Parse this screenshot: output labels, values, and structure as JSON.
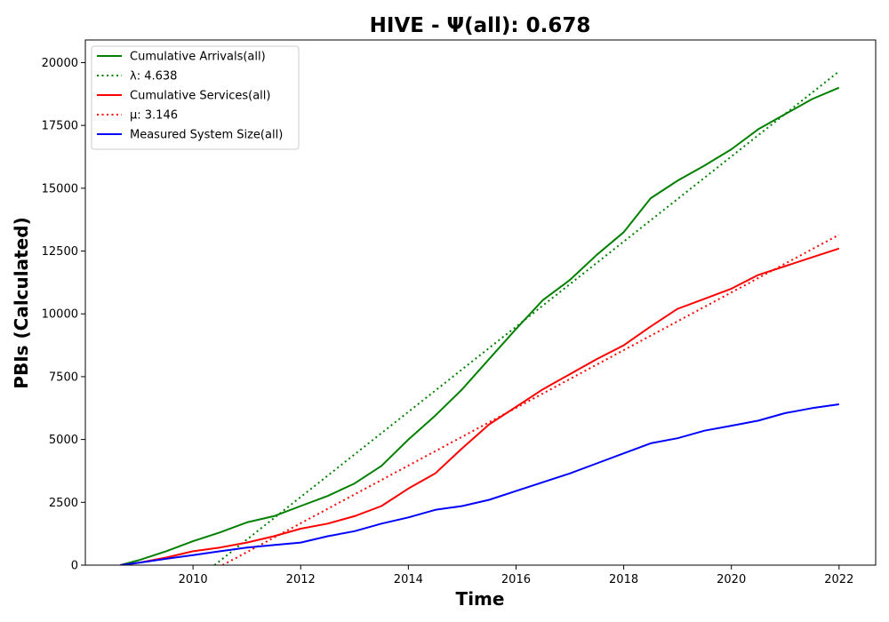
{
  "chart_data": {
    "type": "line",
    "title": "HIVE -  Ψ(all): 0.678",
    "xlabel": "Time",
    "ylabel": "PBIs (Calculated)",
    "xlim": [
      2008.0,
      2022.68
    ],
    "ylim": [
      0,
      20900
    ],
    "x_ticks": [
      2010,
      2012,
      2014,
      2016,
      2018,
      2020,
      2022
    ],
    "x_tick_labels": [
      "2010",
      "2012",
      "2014",
      "2016",
      "2018",
      "2020",
      "2022"
    ],
    "y_ticks": [
      0,
      2500,
      5000,
      7500,
      10000,
      12500,
      15000,
      17500,
      20000
    ],
    "y_tick_labels": [
      "0",
      "2500",
      "5000",
      "7500",
      "10000",
      "12500",
      "15000",
      "17500",
      "20000"
    ],
    "grid": false,
    "legend_position": "top-left",
    "series": [
      {
        "name": "Cumulative Arrivals(all)",
        "color": "#008000",
        "style": "solid",
        "x": [
          2008.65,
          2009.0,
          2009.5,
          2010.0,
          2010.5,
          2011.0,
          2011.5,
          2012.0,
          2012.5,
          2013.0,
          2013.5,
          2014.0,
          2014.5,
          2015.0,
          2015.5,
          2016.0,
          2016.5,
          2017.0,
          2017.5,
          2018.0,
          2018.5,
          2019.0,
          2019.5,
          2020.0,
          2020.5,
          2021.0,
          2021.5,
          2022.0
        ],
        "y": [
          0,
          200,
          550,
          950,
          1300,
          1700,
          1950,
          2350,
          2750,
          3250,
          3950,
          5000,
          5950,
          7000,
          8200,
          9400,
          10550,
          11350,
          12350,
          13250,
          14600,
          15300,
          15900,
          16550,
          17350,
          17950,
          18550,
          19000
        ]
      },
      {
        "name": "λ: 4.638",
        "color": "#008000",
        "style": "dotted",
        "x": [
          2010.4,
          2022.0
        ],
        "y": [
          0,
          19650
        ]
      },
      {
        "name": "Cumulative Services(all)",
        "color": "#ff0000",
        "style": "solid",
        "x": [
          2008.65,
          2009.0,
          2009.5,
          2010.0,
          2010.5,
          2011.0,
          2011.5,
          2012.0,
          2012.5,
          2013.0,
          2013.5,
          2014.0,
          2014.5,
          2015.0,
          2015.5,
          2016.0,
          2016.5,
          2017.0,
          2017.5,
          2018.0,
          2018.5,
          2019.0,
          2019.5,
          2020.0,
          2020.5,
          2021.0,
          2021.5,
          2022.0
        ],
        "y": [
          0,
          100,
          300,
          550,
          700,
          900,
          1150,
          1450,
          1650,
          1950,
          2350,
          3050,
          3650,
          4650,
          5600,
          6300,
          7000,
          7600,
          8200,
          8750,
          9500,
          10200,
          10600,
          11000,
          11550,
          11900,
          12250,
          12600
        ]
      },
      {
        "name": "μ: 3.146",
        "color": "#ff0000",
        "style": "dotted",
        "x": [
          2010.55,
          2022.0
        ],
        "y": [
          0,
          13150
        ]
      },
      {
        "name": "Measured System Size(all)",
        "color": "#0000ff",
        "style": "solid",
        "x": [
          2008.65,
          2009.0,
          2009.5,
          2010.0,
          2010.5,
          2011.0,
          2011.5,
          2012.0,
          2012.5,
          2013.0,
          2013.5,
          2014.0,
          2014.5,
          2015.0,
          2015.5,
          2016.0,
          2016.5,
          2017.0,
          2017.5,
          2018.0,
          2018.5,
          2019.0,
          2019.5,
          2020.0,
          2020.5,
          2021.0,
          2021.5,
          2022.0
        ],
        "y": [
          0,
          100,
          250,
          400,
          550,
          700,
          800,
          900,
          1150,
          1350,
          1650,
          1900,
          2200,
          2350,
          2600,
          2950,
          3300,
          3650,
          4050,
          4450,
          4850,
          5050,
          5350,
          5550,
          5750,
          6050,
          6250,
          6400
        ]
      }
    ]
  }
}
